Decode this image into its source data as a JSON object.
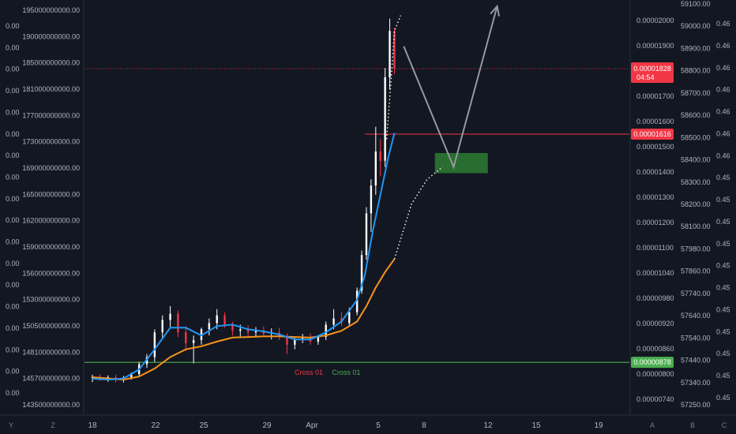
{
  "chart_data": {
    "type": "candlestick",
    "grid": false,
    "x_axis": {
      "labels": [
        "18",
        "22",
        "25",
        "29",
        "Apr",
        "5",
        "8",
        "12",
        "15",
        "19"
      ],
      "domain_days": [
        18,
        53
      ]
    },
    "left_axis_1": {
      "labels": [
        "0.00",
        "0.00",
        "0.00",
        "0.00",
        "0.00",
        "0.00",
        "0.00",
        "0.00",
        "0.00",
        "0.00",
        "0.00",
        "0.00",
        "0.00",
        "0.00",
        "0.00",
        "0.00",
        "0.00",
        "0.00"
      ]
    },
    "left_axis_2": {
      "labels": [
        "195000000000.00",
        "190000000000.00",
        "185000000000.00",
        "181000000000.00",
        "177000000000.00",
        "173000000000.00",
        "169000000000.00",
        "165000000000.00",
        "162000000000.00",
        "159000000000.00",
        "156000000000.00",
        "153000000000.00",
        "150500000000.00",
        "148100000000.00",
        "145700000000.00",
        "143500000000.00"
      ]
    },
    "price_axis": {
      "labels": [
        "0.00002000",
        "0.00001900",
        "0.00001800",
        "0.00001700",
        "0.00001600",
        "0.00001500",
        "0.00001400",
        "0.00001300",
        "0.00001200",
        "0.00001100",
        "0.00001040",
        "0.00000980",
        "0.00000920",
        "0.00000860",
        "0.00000800",
        "0.00000740"
      ],
      "range": [
        7.1e-06,
        2.05e-05
      ],
      "last_price": "0.00001828",
      "countdown": "04:54",
      "resistance": "0.00001616",
      "support": "0.00000878"
    },
    "right_axis_2": {
      "labels": [
        "59100.00",
        "59000.00",
        "58900.00",
        "58800.00",
        "58700.00",
        "58600.00",
        "58500.00",
        "58400.00",
        "58300.00",
        "58200.00",
        "58100.00",
        "57980.00",
        "57860.00",
        "57740.00",
        "57640.00",
        "57540.00",
        "57440.00",
        "57340.00",
        "57250.00"
      ]
    },
    "right_axis_3": {
      "labels": [
        "0.46",
        "0.46",
        "0.46",
        "0.46",
        "0.46",
        "0.46",
        "0.46",
        "0.45",
        "0.45",
        "0.45",
        "0.45",
        "0.45",
        "0.45",
        "0.45",
        "0.45",
        "0.45",
        "0.45",
        "0.45"
      ]
    },
    "scale_buttons": [
      "Y",
      "Z",
      "A",
      "B",
      "C"
    ],
    "annotations": [
      "Cross 01",
      "Cross 01"
    ],
    "colors": {
      "background": "#131722",
      "up": "#ffffff",
      "down": "#f23645",
      "fast_ma": "#2196f3",
      "slow_ma": "#f7931a",
      "resistance": "#f23645",
      "support": "#4caf50",
      "target_box": "#2e7d32",
      "projection": "#9598a1"
    },
    "candles": [
      {
        "d": 18.0,
        "o": 8.28e-06,
        "h": 8.38e-06,
        "l": 8.14e-06,
        "c": 8.31e-06
      },
      {
        "d": 18.5,
        "o": 8.31e-06,
        "h": 8.4e-06,
        "l": 8.18e-06,
        "c": 8.25e-06
      },
      {
        "d": 19.0,
        "o": 8.25e-06,
        "h": 8.36e-06,
        "l": 8.15e-06,
        "c": 8.3e-06
      },
      {
        "d": 19.5,
        "o": 8.3e-06,
        "h": 8.38e-06,
        "l": 8.12e-06,
        "c": 8.2e-06
      },
      {
        "d": 20.0,
        "o": 8.2e-06,
        "h": 8.34e-06,
        "l": 8.13e-06,
        "c": 8.28e-06
      },
      {
        "d": 20.5,
        "o": 8.28e-06,
        "h": 8.45e-06,
        "l": 8.22e-06,
        "c": 8.4e-06
      },
      {
        "d": 21.0,
        "o": 8.4e-06,
        "h": 8.8e-06,
        "l": 8.35e-06,
        "c": 8.72e-06
      },
      {
        "d": 21.5,
        "o": 8.72e-06,
        "h": 9.05e-06,
        "l": 8.6e-06,
        "c": 8.95e-06
      },
      {
        "d": 22.0,
        "o": 8.95e-06,
        "h": 9.85e-06,
        "l": 8.8e-06,
        "c": 9.75e-06
      },
      {
        "d": 22.5,
        "o": 9.75e-06,
        "h": 1.03e-05,
        "l": 9.55e-06,
        "c": 1.015e-05
      },
      {
        "d": 23.0,
        "o": 1.015e-05,
        "h": 1.06e-05,
        "l": 9.9e-06,
        "c": 1.035e-05
      },
      {
        "d": 23.5,
        "o": 1.035e-05,
        "h": 1.045e-05,
        "l": 9.6e-06,
        "c": 9.75e-06
      },
      {
        "d": 24.0,
        "o": 9.75e-06,
        "h": 9.95e-06,
        "l": 9.15e-06,
        "c": 9.4e-06
      },
      {
        "d": 24.5,
        "o": 9.4e-06,
        "h": 9.65e-06,
        "l": 8.75e-06,
        "c": 9.5e-06
      },
      {
        "d": 25.0,
        "o": 9.5e-06,
        "h": 9.9e-06,
        "l": 9.35e-06,
        "c": 9.85e-06
      },
      {
        "d": 25.5,
        "o": 9.85e-06,
        "h": 1.02e-05,
        "l": 9.65e-06,
        "c": 1.005e-05
      },
      {
        "d": 26.0,
        "o": 1.005e-05,
        "h": 1.05e-05,
        "l": 9.85e-06,
        "c": 1.03e-05
      },
      {
        "d": 26.5,
        "o": 1.03e-05,
        "h": 1.04e-05,
        "l": 9.9e-06,
        "c": 1e-05
      },
      {
        "d": 27.0,
        "o": 1e-05,
        "h": 1.01e-05,
        "l": 9.65e-06,
        "c": 9.8e-06
      },
      {
        "d": 27.5,
        "o": 9.8e-06,
        "h": 1e-05,
        "l": 9.6e-06,
        "c": 9.85e-06
      },
      {
        "d": 28.0,
        "o": 9.85e-06,
        "h": 9.98e-06,
        "l": 9.62e-06,
        "c": 9.75e-06
      },
      {
        "d": 28.5,
        "o": 9.75e-06,
        "h": 9.92e-06,
        "l": 9.58e-06,
        "c": 9.82e-06
      },
      {
        "d": 29.0,
        "o": 9.82e-06,
        "h": 9.95e-06,
        "l": 9.6e-06,
        "c": 9.7e-06
      },
      {
        "d": 29.5,
        "o": 9.7e-06,
        "h": 9.88e-06,
        "l": 9.52e-06,
        "c": 9.75e-06
      },
      {
        "d": 30.0,
        "o": 9.75e-06,
        "h": 9.9e-06,
        "l": 9.5e-06,
        "c": 9.6e-06
      },
      {
        "d": 30.5,
        "o": 9.6e-06,
        "h": 9.72e-06,
        "l": 9.05e-06,
        "c": 9.35e-06
      },
      {
        "d": 31.0,
        "o": 9.35e-06,
        "h": 9.58e-06,
        "l": 9.2e-06,
        "c": 9.52e-06
      },
      {
        "d": 31.5,
        "o": 9.52e-06,
        "h": 9.7e-06,
        "l": 9.4e-06,
        "c": 9.58e-06
      },
      {
        "d": 32.0,
        "o": 9.58e-06,
        "h": 9.72e-06,
        "l": 9.35e-06,
        "c": 9.45e-06
      },
      {
        "d": 32.5,
        "o": 9.45e-06,
        "h": 9.65e-06,
        "l": 9.35e-06,
        "c": 9.6e-06
      },
      {
        "d": 33.0,
        "o": 9.6e-06,
        "h": 1.01e-05,
        "l": 9.5e-06,
        "c": 1e-05
      },
      {
        "d": 33.5,
        "o": 1e-05,
        "h": 1.05e-05,
        "l": 9.85e-06,
        "c": 1.02e-05
      },
      {
        "d": 34.0,
        "o": 1.02e-05,
        "h": 1.04e-05,
        "l": 9.95e-06,
        "c": 1.005e-05
      },
      {
        "d": 34.5,
        "o": 1.005e-05,
        "h": 1.055e-05,
        "l": 9.98e-06,
        "c": 1.04e-05
      },
      {
        "d": 35.0,
        "o": 1.04e-05,
        "h": 1.12e-05,
        "l": 1.03e-05,
        "c": 1.11e-05
      },
      {
        "d": 35.3,
        "o": 1.11e-05,
        "h": 1.24e-05,
        "l": 1.1e-05,
        "c": 1.225e-05
      },
      {
        "d": 35.6,
        "o": 1.225e-05,
        "h": 1.38e-05,
        "l": 1.21e-05,
        "c": 1.36e-05
      },
      {
        "d": 35.9,
        "o": 1.36e-05,
        "h": 1.47e-05,
        "l": 1.3e-05,
        "c": 1.45e-05
      },
      {
        "d": 36.2,
        "o": 1.45e-05,
        "h": 1.64e-05,
        "l": 1.42e-05,
        "c": 1.56e-05
      },
      {
        "d": 36.5,
        "o": 1.56e-05,
        "h": 1.6e-05,
        "l": 1.48e-05,
        "c": 1.53e-05
      },
      {
        "d": 36.8,
        "o": 1.53e-05,
        "h": 1.83e-05,
        "l": 1.51e-05,
        "c": 1.8e-05
      },
      {
        "d": 37.1,
        "o": 1.8e-05,
        "h": 1.99e-05,
        "l": 1.76e-05,
        "c": 1.95e-05
      },
      {
        "d": 37.4,
        "o": 1.95e-05,
        "h": 1.96e-05,
        "l": 1.81e-05,
        "c": 1.828e-05
      }
    ],
    "fast_ma": [
      [
        18,
        8.25e-06
      ],
      [
        19,
        8.22e-06
      ],
      [
        20,
        8.26e-06
      ],
      [
        21,
        8.55e-06
      ],
      [
        22,
        9.2e-06
      ],
      [
        23,
        9.9e-06
      ],
      [
        24,
        9.9e-06
      ],
      [
        25,
        9.65e-06
      ],
      [
        26,
        9.95e-06
      ],
      [
        27,
        1e-05
      ],
      [
        28,
        9.85e-06
      ],
      [
        29,
        9.78e-06
      ],
      [
        30,
        9.68e-06
      ],
      [
        31,
        9.52e-06
      ],
      [
        32,
        9.52e-06
      ],
      [
        33,
        9.75e-06
      ],
      [
        34,
        1.01e-05
      ],
      [
        35,
        1.08e-05
      ],
      [
        35.5,
        1.16e-05
      ],
      [
        36,
        1.3e-05
      ],
      [
        36.5,
        1.42e-05
      ],
      [
        37,
        1.54e-05
      ],
      [
        37.4,
        1.62e-05
      ]
    ],
    "slow_ma": [
      [
        18,
        8.3e-06
      ],
      [
        19,
        8.26e-06
      ],
      [
        20,
        8.22e-06
      ],
      [
        21,
        8.32e-06
      ],
      [
        22,
        8.58e-06
      ],
      [
        23,
        8.95e-06
      ],
      [
        24,
        9.2e-06
      ],
      [
        25,
        9.3e-06
      ],
      [
        26,
        9.45e-06
      ],
      [
        27,
        9.58e-06
      ],
      [
        28,
        9.6e-06
      ],
      [
        29,
        9.62e-06
      ],
      [
        30,
        9.62e-06
      ],
      [
        31,
        9.6e-06
      ],
      [
        32,
        9.58e-06
      ],
      [
        33,
        9.65e-06
      ],
      [
        34,
        9.8e-06
      ],
      [
        35,
        1.01e-05
      ],
      [
        35.6,
        1.06e-05
      ],
      [
        36.2,
        1.12e-05
      ],
      [
        36.8,
        1.17e-05
      ],
      [
        37.4,
        1.212e-05
      ]
    ],
    "projection_dotted": [
      [
        37.4,
        1.212e-05
      ],
      [
        38.5,
        1.39e-05
      ],
      [
        39.5,
        1.47e-05
      ],
      [
        40.5,
        1.51e-05
      ]
    ],
    "peak_dotted": [
      [
        36.9,
        1.6e-05
      ],
      [
        37.2,
        1.8e-05
      ],
      [
        37.4,
        1.95e-05
      ],
      [
        37.8,
        2e-05
      ]
    ],
    "projection_path": [
      [
        38.0,
        1.9e-05
      ],
      [
        41.2,
        1.51e-05
      ],
      [
        44.0,
        2.03e-05
      ]
    ],
    "target_zone": {
      "x0": 40.0,
      "x1": 43.4,
      "y0": 1.49e-05,
      "y1": 1.555e-05
    },
    "cross_labels": [
      {
        "d": 31.9,
        "text_index": 0,
        "color": "down"
      },
      {
        "d": 34.3,
        "text_index": 1,
        "color": "support"
      }
    ]
  }
}
